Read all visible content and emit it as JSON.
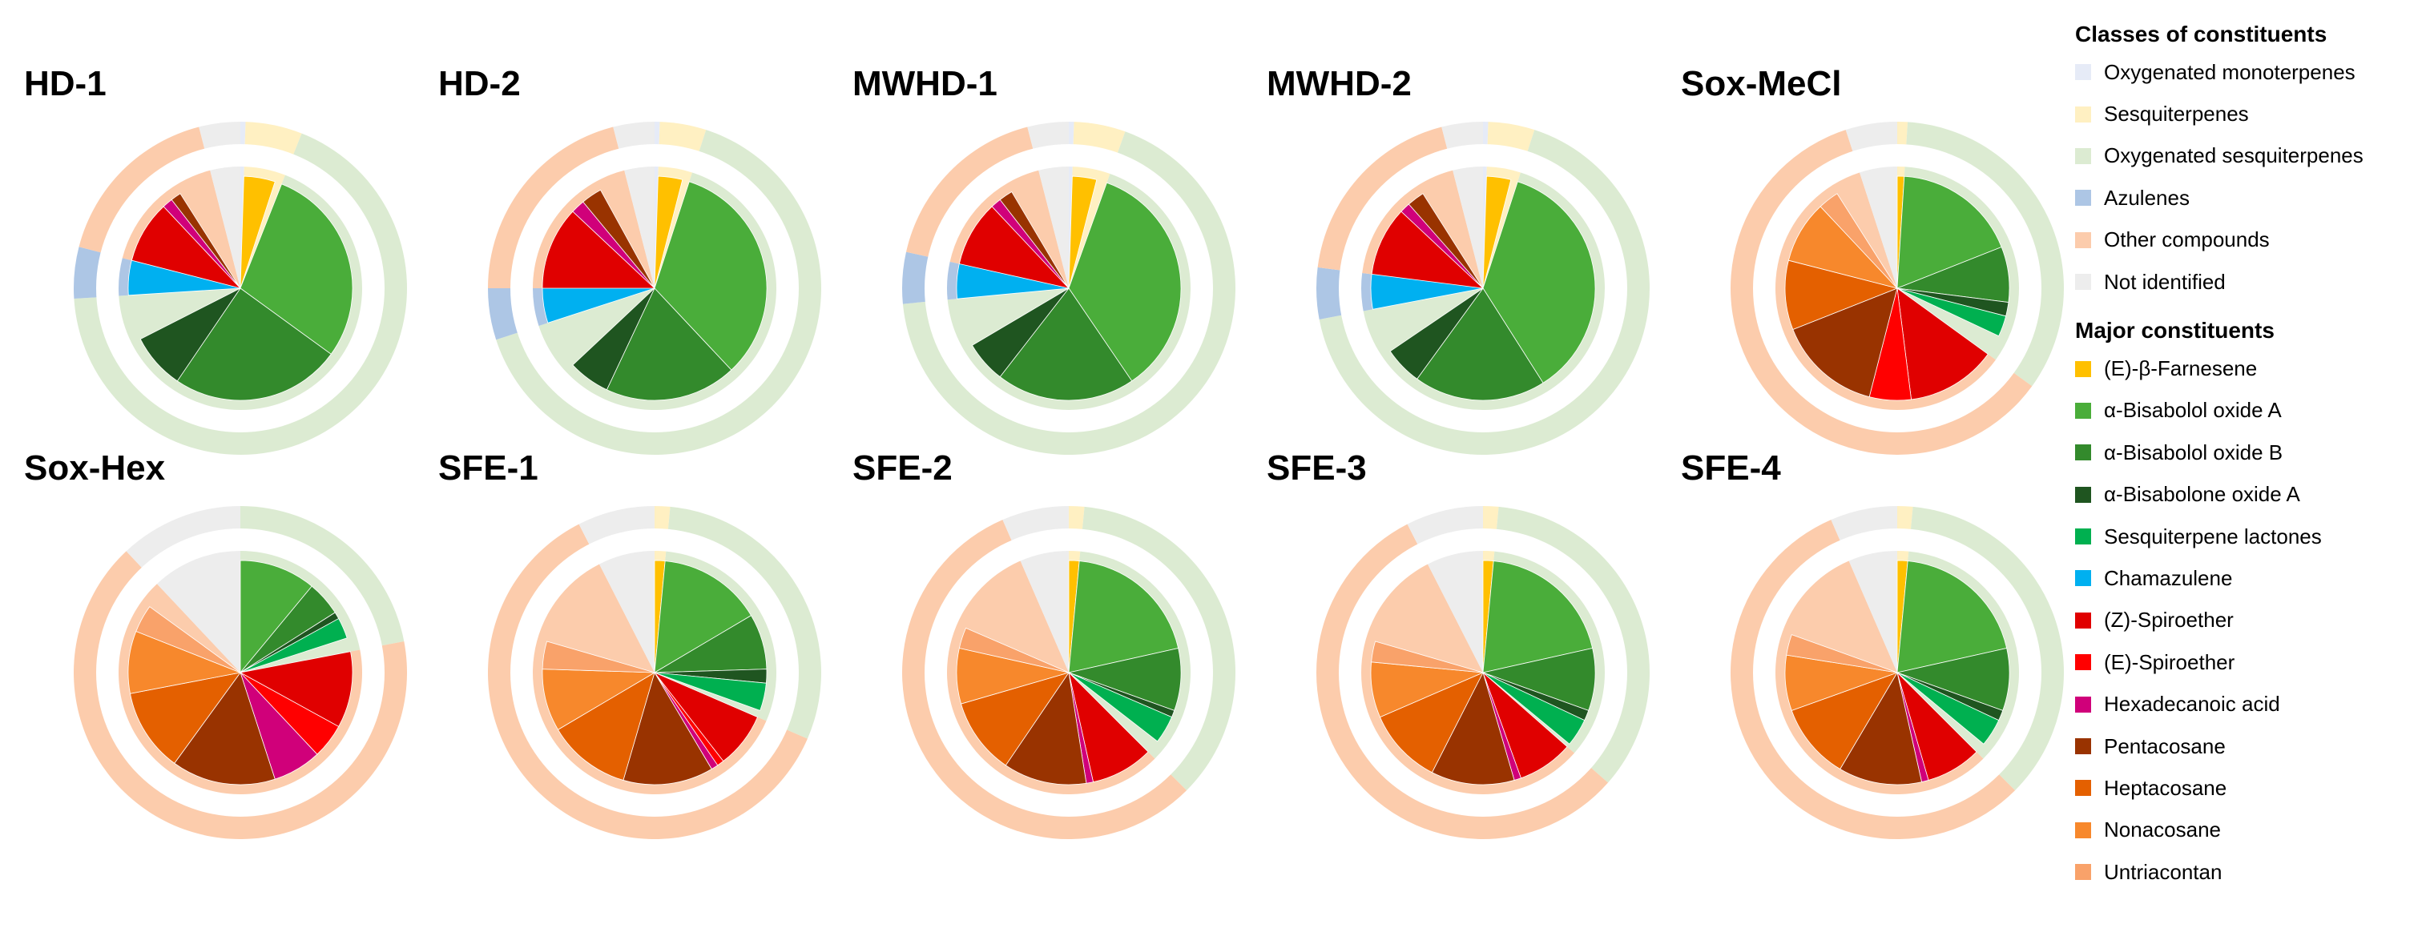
{
  "chart_data": {
    "type": "pie",
    "description_note": "Nested pies: outer ring = classes of constituents, inner wedges = major constituents (approximate %, clockwise from 12 o'clock).",
    "classes": [
      {
        "key": "omt",
        "name": "Oxygenated monoterpenes",
        "color": "#e6ebf7"
      },
      {
        "key": "st",
        "name": "Sesquiterpenes",
        "color": "#fff0c2"
      },
      {
        "key": "ost",
        "name": "Oxygenated sesquiterpenes",
        "color": "#dcebd2"
      },
      {
        "key": "az",
        "name": "Azulenes",
        "color": "#adc6e5"
      },
      {
        "key": "oc",
        "name": "Other compounds",
        "color": "#fcccac"
      },
      {
        "key": "ni",
        "name": "Not identified",
        "color": "#ededed"
      }
    ],
    "constituents": [
      {
        "key": "fa",
        "name": "(E)-β-Farnesene",
        "color": "#ffc000"
      },
      {
        "key": "boa",
        "name": "α-Bisabolol oxide A",
        "color": "#4aad3a"
      },
      {
        "key": "bob",
        "name": "α-Bisabolol oxide B",
        "color": "#338a2c"
      },
      {
        "key": "bnoa",
        "name": "α-Bisabolone oxide A",
        "color": "#1f5520"
      },
      {
        "key": "sl",
        "name": "Sesquiterpene lactones",
        "color": "#00b050"
      },
      {
        "key": "ch",
        "name": "Chamazulene",
        "color": "#00b0f0"
      },
      {
        "key": "zs",
        "name": "(Z)-Spiroether",
        "color": "#e00000"
      },
      {
        "key": "es",
        "name": "(E)-Spiroether",
        "color": "#ff0000"
      },
      {
        "key": "ha",
        "name": "Hexadecanoic acid",
        "color": "#d0007a"
      },
      {
        "key": "pe",
        "name": "Pentacosane",
        "color": "#993300"
      },
      {
        "key": "he",
        "name": "Heptacosane",
        "color": "#e46000"
      },
      {
        "key": "no",
        "name": "Nonacosane",
        "color": "#f7882c"
      },
      {
        "key": "un",
        "name": "Untriacontan",
        "color": "#f9a26a"
      }
    ],
    "samples": [
      {
        "name": "HD-1",
        "classes": [
          [
            "omt",
            0.5
          ],
          [
            "st",
            5.5
          ],
          [
            "ost",
            68
          ],
          [
            "az",
            5
          ],
          [
            "oc",
            17
          ],
          [
            "ni",
            4
          ]
        ],
        "constituents": [
          [
            "fa",
            4.5
          ],
          [
            "boa",
            29
          ],
          [
            "bob",
            24.5
          ],
          [
            "bnoa",
            8
          ],
          [
            "ch",
            8
          ],
          [
            "zs",
            9
          ],
          [
            "ha",
            1.5
          ],
          [
            "pe",
            1.5
          ]
        ]
      },
      {
        "name": "HD-2",
        "classes": [
          [
            "omt",
            0.5
          ],
          [
            "st",
            4.5
          ],
          [
            "ost",
            65
          ],
          [
            "az",
            5
          ],
          [
            "oc",
            21
          ],
          [
            "ni",
            4
          ]
        ],
        "constituents": [
          [
            "fa",
            3.5
          ],
          [
            "boa",
            33
          ],
          [
            "bob",
            19
          ],
          [
            "bnoa",
            6
          ],
          [
            "ch",
            7
          ],
          [
            "zs",
            12
          ],
          [
            "ha",
            2
          ],
          [
            "pe",
            3
          ]
        ]
      },
      {
        "name": "MWHD-1",
        "classes": [
          [
            "omt",
            0.5
          ],
          [
            "st",
            5
          ],
          [
            "ost",
            68
          ],
          [
            "az",
            5
          ],
          [
            "oc",
            17.5
          ],
          [
            "ni",
            4
          ]
        ],
        "constituents": [
          [
            "fa",
            3.5
          ],
          [
            "boa",
            35
          ],
          [
            "bob",
            20
          ],
          [
            "bnoa",
            6
          ],
          [
            "ch",
            8
          ],
          [
            "zs",
            9.5
          ],
          [
            "ha",
            1.5
          ],
          [
            "pe",
            2
          ]
        ]
      },
      {
        "name": "MWHD-2",
        "classes": [
          [
            "omt",
            0.5
          ],
          [
            "st",
            4.5
          ],
          [
            "ost",
            67
          ],
          [
            "az",
            5
          ],
          [
            "oc",
            19
          ],
          [
            "ni",
            4
          ]
        ],
        "constituents": [
          [
            "fa",
            3.5
          ],
          [
            "boa",
            36
          ],
          [
            "bob",
            19
          ],
          [
            "bnoa",
            5.5
          ],
          [
            "ch",
            7
          ],
          [
            "zs",
            10
          ],
          [
            "ha",
            1.5
          ],
          [
            "pe",
            2.5
          ]
        ]
      },
      {
        "name": "Sox-MeCl",
        "classes": [
          [
            "st",
            1
          ],
          [
            "ost",
            34
          ],
          [
            "oc",
            60
          ],
          [
            "ni",
            5
          ]
        ],
        "constituents": [
          [
            "fa",
            1
          ],
          [
            "boa",
            18
          ],
          [
            "bob",
            8
          ],
          [
            "bnoa",
            2
          ],
          [
            "sl",
            3
          ],
          [
            "zs",
            13
          ],
          [
            "es",
            6
          ],
          [
            "pe",
            15
          ],
          [
            "he",
            10
          ],
          [
            "no",
            9
          ],
          [
            "un",
            3
          ]
        ]
      },
      {
        "name": "Sox-Hex",
        "classes": [
          [
            "ost",
            22
          ],
          [
            "oc",
            66
          ],
          [
            "ni",
            12
          ]
        ],
        "constituents": [
          [
            "boa",
            11
          ],
          [
            "bob",
            5
          ],
          [
            "bnoa",
            1
          ],
          [
            "sl",
            3
          ],
          [
            "zs",
            11
          ],
          [
            "es",
            5
          ],
          [
            "ha",
            7
          ],
          [
            "pe",
            15
          ],
          [
            "he",
            12
          ],
          [
            "no",
            9
          ],
          [
            "un",
            4
          ]
        ]
      },
      {
        "name": "SFE-1",
        "classes": [
          [
            "st",
            1.5
          ],
          [
            "ost",
            30
          ],
          [
            "oc",
            61
          ],
          [
            "ni",
            7.5
          ]
        ],
        "constituents": [
          [
            "fa",
            1.5
          ],
          [
            "boa",
            15
          ],
          [
            "bob",
            8
          ],
          [
            "bnoa",
            2
          ],
          [
            "sl",
            4
          ],
          [
            "zs",
            8
          ],
          [
            "es",
            1
          ],
          [
            "ha",
            1
          ],
          [
            "pe",
            13
          ],
          [
            "he",
            12
          ],
          [
            "no",
            9
          ],
          [
            "un",
            4
          ]
        ]
      },
      {
        "name": "SFE-2",
        "classes": [
          [
            "st",
            1.5
          ],
          [
            "ost",
            36
          ],
          [
            "oc",
            56
          ],
          [
            "ni",
            6.5
          ]
        ],
        "constituents": [
          [
            "fa",
            1.5
          ],
          [
            "boa",
            20
          ],
          [
            "bob",
            9
          ],
          [
            "bnoa",
            1
          ],
          [
            "sl",
            4
          ],
          [
            "zs",
            9
          ],
          [
            "ha",
            1
          ],
          [
            "pe",
            12
          ],
          [
            "he",
            11
          ],
          [
            "no",
            8
          ],
          [
            "un",
            3
          ]
        ]
      },
      {
        "name": "SFE-3",
        "classes": [
          [
            "st",
            1.5
          ],
          [
            "ost",
            35
          ],
          [
            "oc",
            56
          ],
          [
            "ni",
            7.5
          ]
        ],
        "constituents": [
          [
            "fa",
            1.5
          ],
          [
            "boa",
            20
          ],
          [
            "bob",
            9
          ],
          [
            "bnoa",
            1.5
          ],
          [
            "sl",
            4
          ],
          [
            "zs",
            8
          ],
          [
            "ha",
            1
          ],
          [
            "pe",
            12
          ],
          [
            "he",
            11
          ],
          [
            "no",
            8
          ],
          [
            "un",
            3
          ]
        ]
      },
      {
        "name": "SFE-4",
        "classes": [
          [
            "st",
            1.5
          ],
          [
            "ost",
            36
          ],
          [
            "oc",
            56
          ],
          [
            "ni",
            6.5
          ]
        ],
        "constituents": [
          [
            "fa",
            1.5
          ],
          [
            "boa",
            20
          ],
          [
            "bob",
            9
          ],
          [
            "bnoa",
            1.5
          ],
          [
            "sl",
            4
          ],
          [
            "zs",
            8
          ],
          [
            "ha",
            1
          ],
          [
            "pe",
            12
          ],
          [
            "he",
            11
          ],
          [
            "no",
            8
          ],
          [
            "un",
            3
          ]
        ]
      }
    ]
  },
  "legend": {
    "classes_heading": "Classes of constituents",
    "constituents_heading": "Major constituents"
  }
}
